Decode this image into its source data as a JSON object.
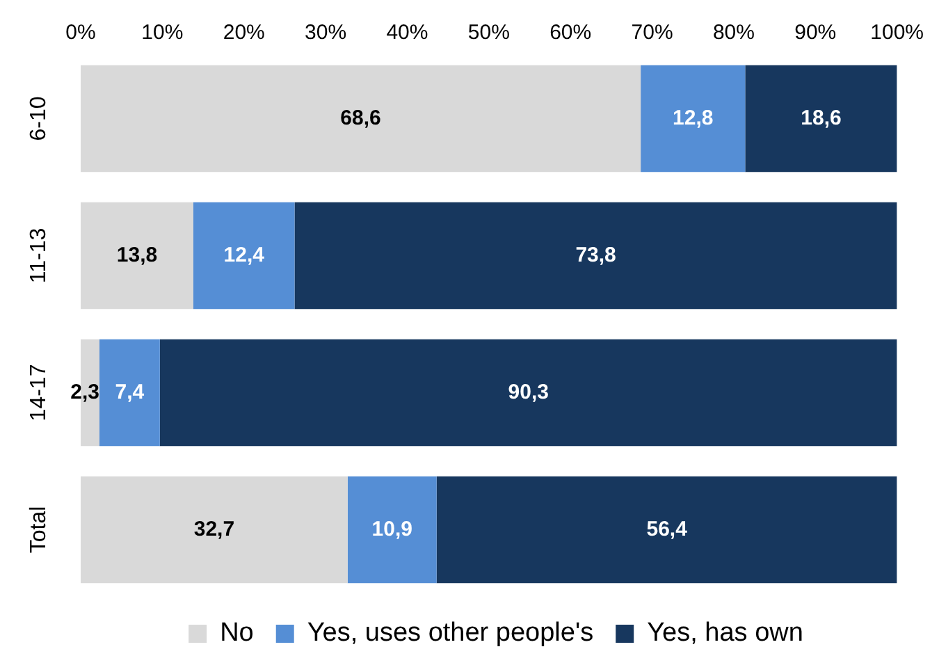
{
  "chart_data": {
    "type": "bar",
    "orientation": "horizontal",
    "stacked": true,
    "categories": [
      "6-10",
      "11-13",
      "14-17",
      "Total"
    ],
    "series": [
      {
        "name": "No",
        "color": "#d9d9d9",
        "values": [
          68.6,
          13.8,
          2.3,
          32.7
        ],
        "value_labels": [
          "68,6",
          "13,8",
          "2,3",
          "32,7"
        ]
      },
      {
        "name": "Yes, uses other people's",
        "color": "#558ed5",
        "values": [
          12.8,
          12.4,
          7.4,
          10.9
        ],
        "value_labels": [
          "12,8",
          "12,4",
          "7,4",
          "10,9"
        ]
      },
      {
        "name": "Yes, has own",
        "color": "#17375e",
        "values": [
          18.6,
          73.8,
          90.3,
          56.4
        ],
        "value_labels": [
          "18,6",
          "73,8",
          "90,3",
          "56,4"
        ]
      }
    ],
    "xlim": [
      0,
      100
    ],
    "xticks": [
      {
        "value": 0,
        "label": "0%"
      },
      {
        "value": 10,
        "label": "10%"
      },
      {
        "value": 20,
        "label": "20%"
      },
      {
        "value": 30,
        "label": "30%"
      },
      {
        "value": 40,
        "label": "40%"
      },
      {
        "value": 50,
        "label": "50%"
      },
      {
        "value": 60,
        "label": "60%"
      },
      {
        "value": 70,
        "label": "70%"
      },
      {
        "value": 80,
        "label": "80%"
      },
      {
        "value": 90,
        "label": "90%"
      },
      {
        "value": 100,
        "label": "100%"
      }
    ],
    "grid": false,
    "legend": "bottom"
  }
}
